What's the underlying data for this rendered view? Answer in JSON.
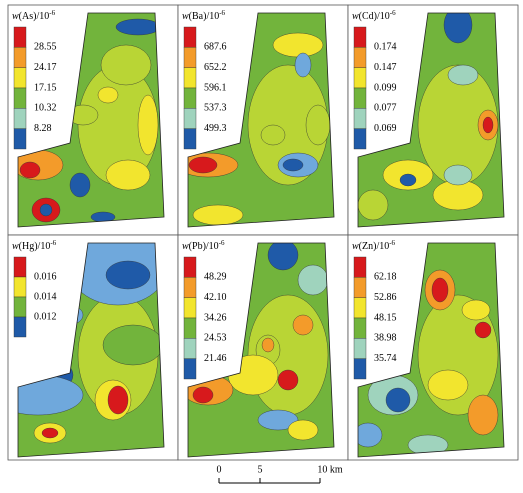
{
  "panels": [
    {
      "title_var": "w",
      "title_rest": "(As)/10",
      "title_exp": "-6",
      "legend": [
        "28.55",
        "24.17",
        "17.15",
        "10.32",
        "8.28"
      ]
    },
    {
      "title_var": "w",
      "title_rest": "(Ba)/10",
      "title_exp": "-6",
      "legend": [
        "687.6",
        "652.2",
        "596.1",
        "537.3",
        "499.3"
      ]
    },
    {
      "title_var": "w",
      "title_rest": "(Cd)/10",
      "title_exp": "-6",
      "legend": [
        "0.174",
        "0.147",
        "0.099",
        "0.077",
        "0.069"
      ]
    },
    {
      "title_var": "w",
      "title_rest": "(Hg)/10",
      "title_exp": "-6",
      "legend": [
        "0.016",
        "0.014",
        "0.012"
      ]
    },
    {
      "title_var": "w",
      "title_rest": "(Pb)/10",
      "title_exp": "-6",
      "legend": [
        "48.29",
        "42.10",
        "34.26",
        "24.53",
        "21.46"
      ]
    },
    {
      "title_var": "w",
      "title_rest": "(Zn)/10",
      "title_exp": "-6",
      "legend": [
        "62.18",
        "52.86",
        "48.15",
        "38.98",
        "35.74"
      ]
    }
  ],
  "scale_bar": {
    "labels": [
      "0",
      "5",
      "10 km"
    ]
  }
}
